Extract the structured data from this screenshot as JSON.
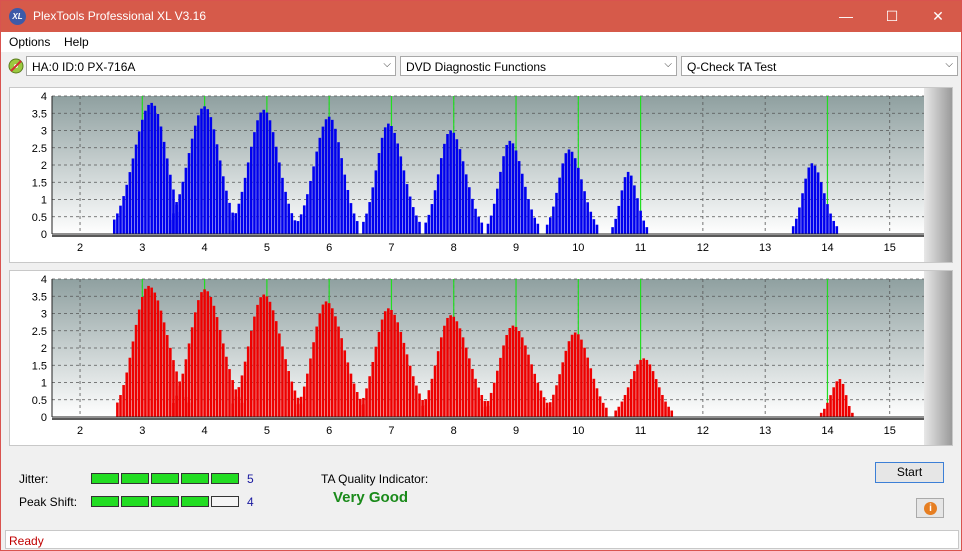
{
  "window": {
    "title": "PlexTools Professional XL V3.16",
    "icon_text": "XL",
    "minimize": "—",
    "maximize": "☐",
    "close": "✕"
  },
  "menu": {
    "options": "Options",
    "help": "Help"
  },
  "toolbar": {
    "drive": "HA:0 ID:0  PX-716A",
    "function": "DVD Diagnostic Functions",
    "test": "Q-Check TA Test",
    "arrow": "⌵"
  },
  "chart_data": [
    {
      "type": "bar",
      "color": "#0000ee",
      "xlim": [
        1.55,
        15.55
      ],
      "ylim": [
        0,
        4
      ],
      "x_ticks": [
        "2",
        "3",
        "4",
        "5",
        "6",
        "7",
        "8",
        "9",
        "10",
        "11",
        "12",
        "13",
        "14",
        "15"
      ],
      "y_ticks": [
        "0",
        "0.5",
        "1",
        "1.5",
        "2",
        "2.5",
        "3",
        "3.5",
        "4"
      ],
      "green_lines": [
        3,
        4,
        5,
        6,
        7,
        8,
        9,
        10,
        11,
        14
      ],
      "peaks": [
        {
          "center": 3.15,
          "peak": 3.8,
          "left": 2.55,
          "right": 3.65
        },
        {
          "center": 4.0,
          "peak": 3.7,
          "left": 3.45,
          "right": 4.5
        },
        {
          "center": 4.95,
          "peak": 3.6,
          "left": 4.45,
          "right": 5.45
        },
        {
          "center": 6.0,
          "peak": 3.4,
          "left": 5.5,
          "right": 6.45
        },
        {
          "center": 6.95,
          "peak": 3.2,
          "left": 6.55,
          "right": 7.45
        },
        {
          "center": 7.95,
          "peak": 3.0,
          "left": 7.55,
          "right": 8.45
        },
        {
          "center": 8.9,
          "peak": 2.7,
          "left": 8.55,
          "right": 9.35
        },
        {
          "center": 9.85,
          "peak": 2.45,
          "left": 9.5,
          "right": 10.3
        },
        {
          "center": 10.8,
          "peak": 1.8,
          "left": 10.55,
          "right": 11.1
        },
        {
          "center": 13.75,
          "peak": 2.05,
          "left": 13.45,
          "right": 14.15
        }
      ]
    },
    {
      "type": "bar",
      "color": "#ee0000",
      "xlim": [
        1.55,
        15.55
      ],
      "ylim": [
        0,
        4
      ],
      "x_ticks": [
        "2",
        "3",
        "4",
        "5",
        "6",
        "7",
        "8",
        "9",
        "10",
        "11",
        "12",
        "13",
        "14",
        "15"
      ],
      "y_ticks": [
        "0",
        "0.5",
        "1",
        "1.5",
        "2",
        "2.5",
        "3",
        "3.5",
        "4"
      ],
      "green_lines": [
        3,
        4,
        5,
        6,
        7,
        8,
        9,
        10,
        11,
        14
      ],
      "peaks": [
        {
          "center": 3.1,
          "peak": 3.8,
          "left": 2.6,
          "right": 3.75
        },
        {
          "center": 4.0,
          "peak": 3.7,
          "left": 3.5,
          "right": 4.6
        },
        {
          "center": 4.95,
          "peak": 3.55,
          "left": 4.45,
          "right": 5.55
        },
        {
          "center": 5.95,
          "peak": 3.35,
          "left": 5.5,
          "right": 6.55
        },
        {
          "center": 6.95,
          "peak": 3.15,
          "left": 6.5,
          "right": 7.55
        },
        {
          "center": 7.95,
          "peak": 2.95,
          "left": 7.5,
          "right": 8.55
        },
        {
          "center": 8.95,
          "peak": 2.65,
          "left": 8.5,
          "right": 9.55
        },
        {
          "center": 9.95,
          "peak": 2.45,
          "left": 9.5,
          "right": 10.45
        },
        {
          "center": 11.05,
          "peak": 1.7,
          "left": 10.6,
          "right": 11.5
        },
        {
          "center": 14.2,
          "peak": 1.1,
          "left": 13.9,
          "right": 14.4
        }
      ]
    }
  ],
  "jitter": {
    "label": "Jitter:",
    "value": "5",
    "level": 5,
    "max": 5
  },
  "peak_shift": {
    "label": "Peak Shift:",
    "value": "4",
    "level": 4,
    "max": 5
  },
  "quality": {
    "label": "TA Quality Indicator:",
    "value": "Very Good"
  },
  "buttons": {
    "start": "Start",
    "info": "i"
  },
  "status": {
    "text": "Ready"
  },
  "colors": {
    "title": "#d65a4a",
    "meter_on": "#22dd22",
    "quality": "#1a8a1a",
    "status": "#c00000"
  }
}
